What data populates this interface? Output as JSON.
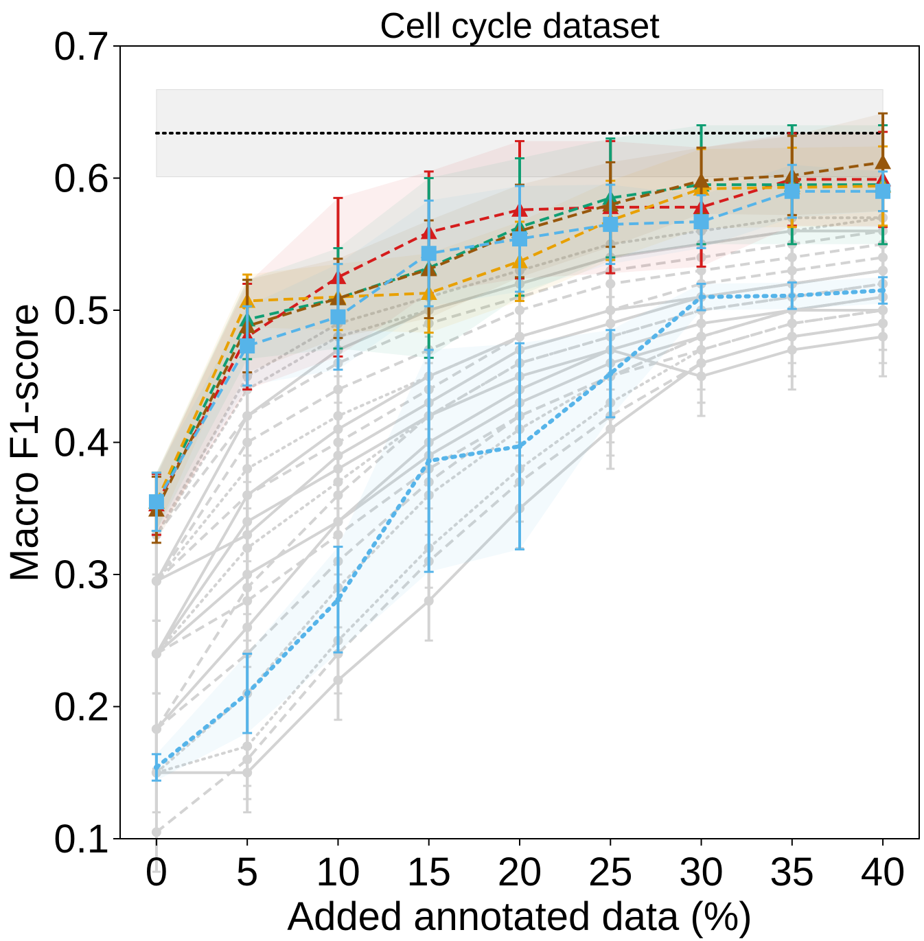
{
  "chart_data": {
    "type": "line",
    "title": "Cell cycle dataset",
    "xlabel": "Added annotated data (%)",
    "ylabel": "Macro F1-score",
    "x": [
      0,
      5,
      10,
      15,
      20,
      25,
      30,
      35,
      40
    ],
    "xlim": [
      -2,
      42
    ],
    "ylim": [
      0.1,
      0.7
    ],
    "xticks": [
      "0",
      "5",
      "10",
      "15",
      "20",
      "25",
      "30",
      "35",
      "40"
    ],
    "yticks": [
      "0.1",
      "0.2",
      "0.3",
      "0.4",
      "0.5",
      "0.6",
      "0.7"
    ],
    "reference": {
      "value": 0.634,
      "band": [
        0.601,
        0.667
      ],
      "style": "dotted",
      "color": "#000000",
      "band_color": "#e8e8e8"
    },
    "series": [
      {
        "color": "#D51C1C",
        "marker": "triangle",
        "style": "dashed",
        "values": [
          0.353,
          0.48,
          0.525,
          0.559,
          0.576,
          0.578,
          0.578,
          0.599,
          0.599
        ],
        "err": [
          0.023,
          0.04,
          0.06,
          0.046,
          0.052,
          0.05,
          0.045,
          0.035,
          0.036
        ]
      },
      {
        "color": "#109E73",
        "marker": "triangle",
        "style": "dashed",
        "values": [
          0.355,
          0.493,
          0.509,
          0.532,
          0.563,
          0.585,
          0.595,
          0.595,
          0.595
        ],
        "err": [
          0.022,
          0.03,
          0.038,
          0.068,
          0.052,
          0.045,
          0.045,
          0.045,
          0.045
        ]
      },
      {
        "color": "#E8A000",
        "marker": "triangle",
        "style": "dashed",
        "values": [
          0.355,
          0.507,
          0.51,
          0.513,
          0.537,
          0.568,
          0.592,
          0.593,
          0.594
        ],
        "err": [
          0.022,
          0.02,
          0.025,
          0.03,
          0.03,
          0.03,
          0.03,
          0.03,
          0.03
        ]
      },
      {
        "color": "#97570C",
        "marker": "triangle",
        "style": "dashed",
        "values": [
          0.349,
          0.488,
          0.509,
          0.531,
          0.56,
          0.58,
          0.598,
          0.602,
          0.612
        ],
        "err": [
          0.025,
          0.035,
          0.03,
          0.037,
          0.035,
          0.032,
          0.025,
          0.03,
          0.037
        ]
      },
      {
        "color": "#56B4E9",
        "marker": "square",
        "style": "dashed",
        "values": [
          0.355,
          0.473,
          0.495,
          0.543,
          0.554,
          0.565,
          0.567,
          0.59,
          0.59
        ],
        "err": [
          0.022,
          0.03,
          0.04,
          0.04,
          0.04,
          0.03,
          0.02,
          0.02,
          0.015
        ]
      },
      {
        "color": "#56B4E9",
        "marker": "none",
        "style": "dotted",
        "values": [
          0.154,
          0.21,
          0.281,
          0.386,
          0.397,
          0.452,
          0.51,
          0.511,
          0.515
        ],
        "err": [
          0.01,
          0.03,
          0.04,
          0.084,
          0.078,
          0.033,
          0.01,
          0.01,
          0.01
        ]
      }
    ],
    "background_series_color": "#d3d3d3",
    "background_series": [
      [
        0.295,
        0.33,
        0.39,
        0.43,
        0.47,
        0.49,
        0.51,
        0.52,
        0.53
      ],
      [
        0.295,
        0.36,
        0.4,
        0.44,
        0.48,
        0.5,
        0.52,
        0.53,
        0.54
      ],
      [
        0.24,
        0.32,
        0.37,
        0.42,
        0.46,
        0.48,
        0.5,
        0.51,
        0.52
      ],
      [
        0.24,
        0.3,
        0.34,
        0.39,
        0.43,
        0.46,
        0.48,
        0.5,
        0.5
      ],
      [
        0.33,
        0.42,
        0.46,
        0.49,
        0.51,
        0.53,
        0.54,
        0.55,
        0.56
      ],
      [
        0.33,
        0.44,
        0.48,
        0.5,
        0.52,
        0.54,
        0.55,
        0.56,
        0.57
      ],
      [
        0.183,
        0.26,
        0.34,
        0.4,
        0.44,
        0.47,
        0.49,
        0.5,
        0.51
      ],
      [
        0.183,
        0.24,
        0.31,
        0.37,
        0.42,
        0.45,
        0.48,
        0.5,
        0.51
      ],
      [
        0.15,
        0.17,
        0.25,
        0.32,
        0.38,
        0.43,
        0.47,
        0.49,
        0.5
      ],
      [
        0.15,
        0.15,
        0.22,
        0.28,
        0.35,
        0.41,
        0.46,
        0.48,
        0.49
      ],
      [
        0.105,
        0.16,
        0.24,
        0.31,
        0.37,
        0.42,
        0.46,
        0.48,
        0.49
      ],
      [
        0.295,
        0.38,
        0.42,
        0.45,
        0.48,
        0.5,
        0.51,
        0.52,
        0.53
      ],
      [
        0.24,
        0.34,
        0.38,
        0.42,
        0.45,
        0.47,
        0.45,
        0.47,
        0.48
      ],
      [
        0.295,
        0.4,
        0.44,
        0.47,
        0.5,
        0.52,
        0.53,
        0.54,
        0.55
      ],
      [
        0.33,
        0.45,
        0.49,
        0.51,
        0.53,
        0.55,
        0.56,
        0.57,
        0.57
      ],
      [
        0.24,
        0.36,
        0.41,
        0.45,
        0.48,
        0.5,
        0.51,
        0.52,
        0.53
      ],
      [
        0.183,
        0.29,
        0.36,
        0.42,
        0.46,
        0.48,
        0.5,
        0.51,
        0.52
      ],
      [
        0.15,
        0.21,
        0.29,
        0.36,
        0.41,
        0.45,
        0.48,
        0.5,
        0.51
      ],
      [
        0.295,
        0.42,
        0.47,
        0.5,
        0.52,
        0.54,
        0.55,
        0.56,
        0.56
      ],
      [
        0.24,
        0.28,
        0.33,
        0.38,
        0.42,
        0.45,
        0.47,
        0.49,
        0.5
      ]
    ]
  }
}
